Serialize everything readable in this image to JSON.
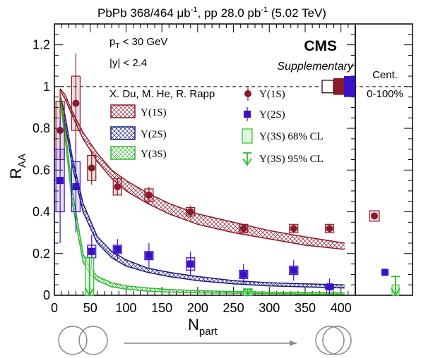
{
  "header": {
    "main": "PbPb 368/464 μb",
    "sup1": "-1",
    "mid": ", pp 28.0 pb",
    "sup2": "-1",
    "end": " (5.02 TeV)"
  },
  "cuts": {
    "pt_prefix": "p",
    "pt_sub": "T",
    "pt_rest": " < 30 GeV",
    "y": "|y| < 2.4"
  },
  "branding": {
    "logo": "CMS",
    "tag": "Supplementary"
  },
  "side_panel": {
    "title": "Cent.",
    "range": "0-100%"
  },
  "legend": {
    "model": "X. Du, M. He, R. Rapp",
    "model_items": [
      "Υ(1S)",
      "Υ(2S)",
      "Υ(3S)"
    ],
    "data_items": [
      "Υ(1S)",
      "Υ(2S)",
      "Υ(3S) 68% CL",
      "Υ(3S) 95% CL"
    ]
  },
  "colors": {
    "s1": "#8b1a2b",
    "s2": "#3a10c8",
    "s3": "#2eb82e",
    "band1": "#8b1a2b",
    "band2": "#1a1a7a",
    "band3": "#2eb82e",
    "gray_arrow": "#888888"
  },
  "chart_data": {
    "type": "scatter",
    "xlabel_main": "N",
    "xlabel_sub": "part",
    "ylabel_main": "R",
    "ylabel_sub": "AA",
    "xlim": [
      0,
      420
    ],
    "ylim": [
      0,
      1.3
    ],
    "xticks": [
      "0",
      "50",
      "100",
      "150",
      "200",
      "250",
      "300",
      "350",
      "400"
    ],
    "yticks": [
      "0",
      "0.2",
      "0.4",
      "0.6",
      "0.8",
      "1",
      "1.2"
    ],
    "reference_line": 1.0,
    "series": [
      {
        "name": "Υ(1S)",
        "x": [
          8,
          30,
          52,
          88,
          132,
          190,
          264,
          334,
          384
        ],
        "y": [
          0.79,
          0.92,
          0.61,
          0.52,
          0.48,
          0.4,
          0.32,
          0.32,
          0.32
        ],
        "err": [
          0.2,
          0.24,
          0.08,
          0.04,
          0.04,
          0.03,
          0.02,
          0.02,
          0.02
        ],
        "syst": [
          0.14,
          0.13,
          0.06,
          0.04,
          0.03,
          0.02,
          0.02,
          0.02,
          0.02
        ]
      },
      {
        "name": "Υ(2S)",
        "x": [
          8,
          30,
          52,
          88,
          132,
          190,
          264,
          334,
          384
        ],
        "y": [
          0.55,
          0.52,
          0.21,
          0.22,
          0.19,
          0.15,
          0.1,
          0.12,
          0.04
        ],
        "err": [
          0.3,
          0.22,
          0.08,
          0.05,
          0.06,
          0.06,
          0.05,
          0.05,
          0.04
        ],
        "syst": [
          0.15,
          0.12,
          0.03,
          0.02,
          0.02,
          0.03,
          0.02,
          0.02,
          0.01
        ]
      },
      {
        "name": "Υ(3S) 68% CL",
        "boxes": [
          {
            "x": 49,
            "lo": 0.0,
            "hi": 0.18
          },
          {
            "x": 270,
            "lo": 0.0,
            "hi": 0.03
          }
        ]
      },
      {
        "name": "Υ(3S) 95% CL",
        "limits": [
          {
            "x": 49,
            "y": 0.18
          },
          {
            "x": 270,
            "y": 0.03
          }
        ]
      }
    ],
    "model_bands": [
      {
        "name": "Υ(1S)",
        "x": [
          8,
          15,
          25,
          40,
          60,
          80,
          100,
          130,
          160,
          200,
          250,
          300,
          350,
          405
        ],
        "low": [
          0.98,
          0.94,
          0.86,
          0.75,
          0.64,
          0.56,
          0.5,
          0.44,
          0.39,
          0.34,
          0.3,
          0.27,
          0.24,
          0.22
        ],
        "high": [
          0.99,
          0.96,
          0.88,
          0.78,
          0.68,
          0.6,
          0.55,
          0.49,
          0.44,
          0.39,
          0.35,
          0.31,
          0.28,
          0.25
        ]
      },
      {
        "name": "Υ(2S)",
        "x": [
          8,
          15,
          25,
          40,
          60,
          80,
          100,
          130,
          160,
          200,
          250,
          300,
          350,
          405
        ],
        "low": [
          0.94,
          0.82,
          0.62,
          0.4,
          0.25,
          0.18,
          0.14,
          0.11,
          0.09,
          0.07,
          0.055,
          0.045,
          0.04,
          0.035
        ],
        "high": [
          0.96,
          0.86,
          0.66,
          0.44,
          0.28,
          0.21,
          0.17,
          0.13,
          0.11,
          0.09,
          0.07,
          0.06,
          0.055,
          0.05
        ]
      },
      {
        "name": "Υ(3S)",
        "x": [
          8,
          15,
          25,
          40,
          50,
          60,
          80,
          100,
          130,
          160,
          200,
          250,
          300,
          350,
          405
        ],
        "low": [
          0.94,
          0.75,
          0.44,
          0.16,
          0.1,
          0.07,
          0.04,
          0.03,
          0.02,
          0.015,
          0.012,
          0.01,
          0.008,
          0.006,
          0.005
        ],
        "high": [
          0.96,
          0.8,
          0.5,
          0.2,
          0.13,
          0.09,
          0.06,
          0.045,
          0.035,
          0.028,
          0.022,
          0.018,
          0.015,
          0.013,
          0.012
        ]
      }
    ],
    "integrated": [
      {
        "name": "Υ(1S)",
        "y": 0.38,
        "syst": 0.025
      },
      {
        "name": "Υ(2S)",
        "y": 0.11,
        "syst": 0.01
      },
      {
        "name": "Υ(3S)",
        "y": 0.03,
        "limit": 0.09
      }
    ]
  }
}
